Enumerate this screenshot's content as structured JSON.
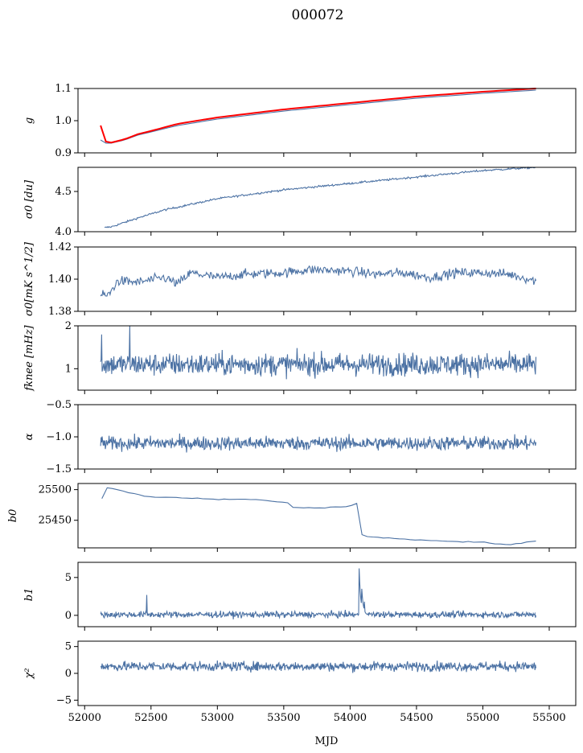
{
  "figure": {
    "title": "000072",
    "xlabel": "MJD"
  },
  "colors": {
    "series": "#4c72a4",
    "gain_overlay": "#ff0000",
    "axis": "#000000"
  },
  "chart_data": [
    {
      "type": "line",
      "ylabel": "g",
      "ylim": [
        0.9,
        1.1
      ],
      "yticks": [
        "0.9",
        "1.0",
        "1.1"
      ],
      "ytick_values": [
        0.9,
        1.0,
        1.1
      ],
      "xlim": [
        51950,
        55700
      ],
      "x_range": [
        52120,
        55400
      ],
      "series": [
        {
          "x": [
            52120,
            52160,
            52200,
            52250,
            52300,
            52400,
            52500,
            52700,
            53000,
            53500,
            54000,
            54500,
            55000,
            55400
          ],
          "values": [
            0.94,
            0.93,
            0.93,
            0.935,
            0.94,
            0.955,
            0.965,
            0.985,
            1.005,
            1.03,
            1.05,
            1.07,
            1.085,
            1.095
          ]
        },
        {
          "x": [
            52120,
            52125,
            52130,
            52135,
            52160,
            52200,
            52250,
            52300,
            52400,
            52500,
            52700,
            53000,
            53500,
            54000,
            54500,
            55000,
            55400
          ],
          "values": [
            0.985,
            0.96,
            0.95,
            0.94,
            0.935,
            0.932,
            0.937,
            0.942,
            0.958,
            0.968,
            0.99,
            1.01,
            1.035,
            1.055,
            1.075,
            1.09,
            1.1
          ]
        }
      ]
    },
    {
      "type": "line",
      "ylabel": "σ0 [du]",
      "ylim": [
        4.0,
        4.8
      ],
      "yticks": [
        "4.0",
        "4.5"
      ],
      "ytick_values": [
        4.0,
        4.5
      ],
      "xlim": [
        51950,
        55700
      ],
      "x_range": [
        52120,
        55400
      ],
      "series": [
        {
          "x": [
            52150,
            52200,
            52400,
            52600,
            52800,
            53000,
            53500,
            54000,
            54500,
            55000,
            55400
          ],
          "values": [
            4.05,
            4.06,
            4.17,
            4.27,
            4.34,
            4.41,
            4.52,
            4.6,
            4.68,
            4.76,
            4.8
          ]
        }
      ]
    },
    {
      "type": "line",
      "ylabel": "σ0[mK s^1/2]",
      "ylim": [
        1.38,
        1.42
      ],
      "yticks": [
        "1.38",
        "1.40",
        "1.42"
      ],
      "ytick_values": [
        1.38,
        1.4,
        1.42
      ],
      "xlim": [
        51950,
        55700
      ],
      "x_range": [
        52120,
        55400
      ],
      "series": [
        {
          "x": [
            52120,
            52180,
            52250,
            52400,
            52600,
            52700,
            52800,
            53000,
            53200,
            53500,
            53700,
            54000,
            54200,
            54400,
            54600,
            54800,
            55000,
            55200,
            55400
          ],
          "values": [
            1.39,
            1.39,
            1.399,
            1.398,
            1.401,
            1.397,
            1.404,
            1.401,
            1.403,
            1.404,
            1.406,
            1.405,
            1.403,
            1.404,
            1.401,
            1.404,
            1.404,
            1.403,
            1.399
          ]
        }
      ]
    },
    {
      "type": "line",
      "ylabel": "fknee [mHz]",
      "ylim": [
        0.5,
        2.0
      ],
      "yticks": [
        "1",
        "2"
      ],
      "ytick_values": [
        1,
        2
      ],
      "xlim": [
        51950,
        55700
      ],
      "x_range": [
        52120,
        55400
      ],
      "series": [
        {
          "mean": 1.1,
          "spread": 0.22,
          "spikes": [
            [
              52340,
              2.0
            ],
            [
              52130,
              1.8
            ]
          ]
        }
      ]
    },
    {
      "type": "line",
      "ylabel": "α",
      "ylim": [
        -1.5,
        -0.5
      ],
      "yticks": [
        "−1.5",
        "−1.0",
        "−0.5"
      ],
      "ytick_values": [
        -1.5,
        -1.0,
        -0.5
      ],
      "xlim": [
        51950,
        55700
      ],
      "x_range": [
        52120,
        55400
      ],
      "series": [
        {
          "mean": -1.1,
          "spread": 0.09
        }
      ]
    },
    {
      "type": "line",
      "ylabel": "b0",
      "ylim": [
        25405,
        25510
      ],
      "yticks": [
        "25450",
        "25500"
      ],
      "ytick_values": [
        25450,
        25500
      ],
      "xlim": [
        51950,
        55700
      ],
      "x_range": [
        52120,
        55400
      ],
      "series": [
        {
          "x": [
            52130,
            52150,
            52160,
            52200,
            52300,
            52400,
            52500,
            52700,
            53000,
            53300,
            53550,
            53570,
            53800,
            54000,
            54050,
            54060,
            54080,
            54120,
            54200,
            54500,
            55000,
            55200,
            55400
          ],
          "values": [
            25485,
            25485,
            25503,
            25502,
            25497,
            25492,
            25488,
            25487,
            25484,
            25484,
            25478,
            25471,
            25470,
            25473,
            25478,
            25440,
            25428,
            25424,
            25422,
            25418,
            25414,
            25410,
            25416
          ]
        }
      ]
    },
    {
      "type": "line",
      "ylabel": "b1",
      "ylim": [
        -1.5,
        7.0
      ],
      "yticks": [
        "0",
        "5"
      ],
      "ytick_values": [
        0,
        5
      ],
      "xlim": [
        51950,
        55700
      ],
      "x_range": [
        52120,
        55400
      ],
      "series": [
        {
          "mean": 0.1,
          "spread": 0.35,
          "spikes": [
            [
              52470,
              2.7
            ],
            [
              54070,
              6.2
            ],
            [
              54090,
              3.5
            ],
            [
              54110,
              1.8
            ]
          ]
        }
      ]
    },
    {
      "type": "line",
      "ylabel": "χ²",
      "ylim": [
        -6,
        6
      ],
      "yticks": [
        "−5",
        "0",
        "5"
      ],
      "ytick_values": [
        -5,
        0,
        5
      ],
      "xlim": [
        51950,
        55700
      ],
      "x_range": [
        52120,
        55400
      ],
      "xticks": [
        "52000",
        "52500",
        "53000",
        "53500",
        "54000",
        "54500",
        "55000",
        "55500"
      ],
      "xtick_values": [
        52000,
        52500,
        53000,
        53500,
        54000,
        54500,
        55000,
        55500
      ],
      "series": [
        {
          "mean": 1.3,
          "spread": 0.75
        }
      ]
    }
  ]
}
